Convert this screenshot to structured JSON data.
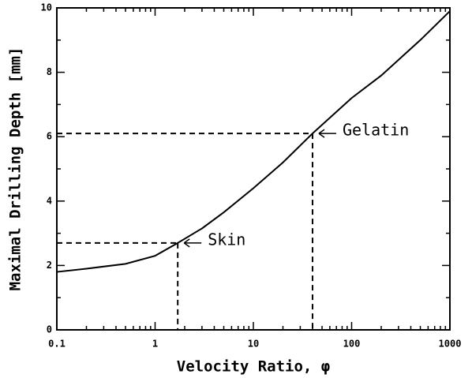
{
  "chart_data": {
    "type": "line",
    "xlabel": "Velocity Ratio, φ",
    "ylabel": "Maximal Drilling Depth [mm]",
    "x": [
      0.1,
      0.2,
      0.5,
      1,
      1.7,
      3,
      5,
      10,
      20,
      40,
      100,
      200,
      500,
      1000
    ],
    "series": [
      {
        "color": "#000000",
        "values": [
          1.8,
          1.9,
          2.05,
          2.3,
          2.7,
          3.15,
          3.65,
          4.4,
          5.2,
          6.1,
          7.2,
          7.9,
          9.0,
          9.9
        ]
      }
    ],
    "xlim": [
      0.1,
      1000
    ],
    "xticks": [
      0.1,
      1,
      10,
      100,
      1000
    ],
    "xscale": "log",
    "ylim": [
      0,
      10
    ],
    "yticks": [
      0,
      2,
      4,
      6,
      8,
      10
    ],
    "annotations": [
      {
        "text": "Skin",
        "x": 1.7,
        "y": 2.7
      },
      {
        "text": "Gelatin",
        "x": 40,
        "y": 6.1
      }
    ]
  }
}
